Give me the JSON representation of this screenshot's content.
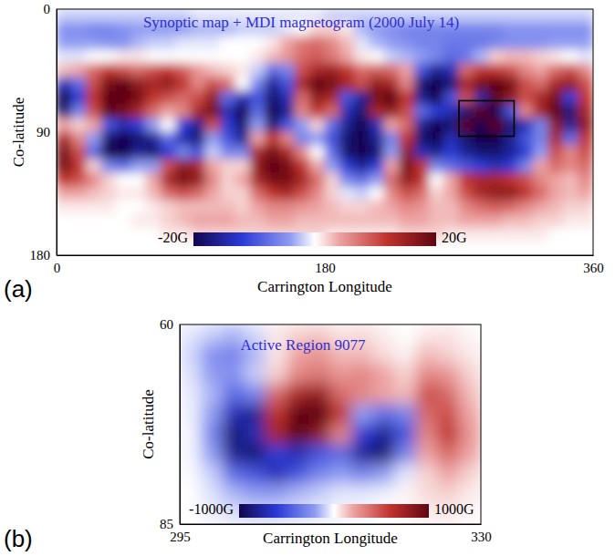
{
  "chart_data": [
    {
      "type": "heatmap",
      "title": "Synoptic map + MDI magnetogram (2000 July 14)",
      "x_label": "Carrington Longitude",
      "y_label": "Co-latitude",
      "panel_label": "(a)",
      "xlim": [
        0,
        360
      ],
      "xticks": [
        0,
        180,
        360
      ],
      "ylim": [
        0,
        180
      ],
      "yticks": [
        0,
        90,
        180
      ],
      "x": [
        5,
        15,
        25,
        35,
        45,
        55,
        65,
        75,
        85,
        95,
        105,
        115,
        125,
        135,
        145,
        155,
        165,
        175,
        185,
        195,
        205,
        215,
        225,
        235,
        245,
        255,
        265,
        275,
        285,
        295,
        305,
        315,
        325,
        335,
        345,
        355
      ],
      "y": [
        5,
        15,
        25,
        35,
        45,
        55,
        65,
        75,
        85,
        95,
        105,
        115,
        125,
        135,
        145,
        155,
        165,
        175
      ],
      "values": [
        [
          -2,
          -2,
          -2,
          -2,
          -2,
          -2,
          -2,
          -2,
          -2,
          -1,
          -1,
          -1,
          -1,
          -1,
          -1,
          -1,
          -1,
          -1,
          -2,
          -2,
          -2,
          -2,
          -2,
          -2,
          -2,
          -2,
          -2,
          -2,
          -2,
          -2,
          -2,
          -2,
          -2,
          -2,
          -2,
          -2
        ],
        [
          -5,
          -5,
          -6,
          -6,
          -5,
          -4,
          -4,
          -4,
          -4,
          -3,
          -3,
          -3,
          -2,
          -2,
          -2,
          -1,
          0,
          2,
          2,
          1,
          -3,
          -4,
          -5,
          -6,
          -6,
          -6,
          -6,
          -6,
          -6,
          -6,
          -5,
          -5,
          -5,
          -5,
          -5,
          -5
        ],
        [
          -4,
          -4,
          -4,
          -5,
          -5,
          -3,
          -2,
          -2,
          -1,
          -1,
          -1,
          0,
          0,
          0,
          1,
          4,
          7,
          8,
          6,
          3,
          -1,
          -3,
          -4,
          -5,
          -6,
          -6,
          -7,
          -7,
          -7,
          -6,
          -5,
          -5,
          -5,
          -4,
          -4,
          -4
        ],
        [
          -1,
          -1,
          0,
          0,
          1,
          1,
          0,
          0,
          0,
          0,
          0,
          0,
          0,
          1,
          3,
          5,
          8,
          9,
          7,
          4,
          1,
          0,
          -2,
          -3,
          -4,
          -6,
          -8,
          -7,
          -3,
          2,
          3,
          3,
          2,
          1,
          0,
          -1
        ],
        [
          3,
          4,
          8,
          12,
          10,
          8,
          10,
          12,
          9,
          5,
          3,
          2,
          1,
          -2,
          -8,
          -6,
          10,
          14,
          15,
          12,
          8,
          9,
          8,
          4,
          -10,
          -16,
          -14,
          8,
          12,
          12,
          10,
          6,
          4,
          8,
          10,
          6
        ],
        [
          -14,
          -8,
          10,
          18,
          20,
          16,
          14,
          16,
          12,
          6,
          10,
          8,
          0,
          -6,
          -16,
          -10,
          14,
          20,
          18,
          14,
          10,
          16,
          14,
          6,
          -18,
          -22,
          -18,
          14,
          18,
          20,
          18,
          10,
          8,
          14,
          16,
          10
        ],
        [
          -20,
          -12,
          12,
          22,
          22,
          18,
          12,
          10,
          8,
          10,
          16,
          -8,
          -14,
          -10,
          -18,
          -14,
          8,
          16,
          14,
          -10,
          -16,
          18,
          20,
          12,
          -16,
          -20,
          -10,
          10,
          -15,
          20,
          16,
          10,
          14,
          18,
          -12,
          12
        ],
        [
          -18,
          -6,
          10,
          20,
          18,
          14,
          8,
          4,
          6,
          14,
          18,
          -14,
          -20,
          -8,
          -20,
          -16,
          6,
          12,
          8,
          -14,
          -18,
          14,
          16,
          10,
          -8,
          -12,
          -14,
          -18,
          20,
          -20,
          -10,
          6,
          14,
          20,
          -18,
          14
        ],
        [
          4,
          2,
          4,
          -10,
          -14,
          -12,
          -4,
          0,
          -12,
          -16,
          10,
          -12,
          -18,
          -4,
          -18,
          -10,
          -4,
          2,
          -8,
          -16,
          -20,
          -14,
          4,
          8,
          -16,
          -20,
          -18,
          20,
          -22,
          22,
          -18,
          -14,
          -6,
          16,
          -16,
          16
        ],
        [
          14,
          6,
          -4,
          -18,
          -22,
          -18,
          -16,
          -8,
          -14,
          -18,
          -4,
          -10,
          -16,
          4,
          12,
          6,
          -6,
          -4,
          -10,
          -18,
          -20,
          -16,
          -6,
          12,
          -18,
          -20,
          -14,
          -18,
          -20,
          -20,
          -16,
          -10,
          -6,
          14,
          -8,
          12
        ],
        [
          18,
          10,
          -8,
          -20,
          -20,
          -16,
          -18,
          -12,
          -6,
          -10,
          -2,
          -6,
          -6,
          14,
          18,
          14,
          6,
          0,
          -8,
          -18,
          -20,
          -18,
          -4,
          16,
          -14,
          -16,
          -12,
          -16,
          -18,
          -18,
          -16,
          -12,
          -4,
          10,
          6,
          10
        ],
        [
          18,
          12,
          2,
          -6,
          -8,
          -4,
          -4,
          10,
          16,
          14,
          4,
          2,
          2,
          16,
          20,
          18,
          12,
          4,
          -4,
          -12,
          -16,
          -12,
          4,
          18,
          12,
          -6,
          -8,
          -10,
          -12,
          -14,
          -12,
          -6,
          4,
          8,
          6,
          8
        ],
        [
          12,
          10,
          6,
          2,
          0,
          0,
          4,
          14,
          18,
          16,
          6,
          2,
          4,
          14,
          18,
          18,
          14,
          8,
          2,
          -6,
          -8,
          -4,
          8,
          16,
          12,
          0,
          4,
          12,
          14,
          14,
          12,
          10,
          6,
          4,
          3,
          6
        ],
        [
          4,
          4,
          3,
          2,
          1,
          1,
          3,
          8,
          10,
          8,
          4,
          2,
          2,
          8,
          12,
          14,
          10,
          6,
          2,
          -1,
          -2,
          0,
          6,
          10,
          8,
          2,
          4,
          10,
          14,
          16,
          16,
          12,
          8,
          4,
          3,
          4
        ],
        [
          1,
          1,
          1,
          1,
          0,
          0,
          1,
          2,
          3,
          3,
          3,
          3,
          2,
          4,
          6,
          6,
          5,
          4,
          3,
          2,
          2,
          3,
          4,
          6,
          5,
          3,
          3,
          6,
          8,
          9,
          8,
          6,
          4,
          3,
          2,
          2
        ],
        [
          0,
          0,
          0,
          0,
          0,
          1,
          1,
          2,
          3,
          4,
          4,
          4,
          3,
          3,
          4,
          4,
          3,
          3,
          3,
          3,
          3,
          3,
          3,
          4,
          4,
          3,
          3,
          4,
          4,
          4,
          3,
          3,
          2,
          2,
          1,
          1
        ],
        [
          0,
          0,
          0,
          0,
          0,
          0,
          0,
          1,
          1,
          2,
          2,
          2,
          2,
          2,
          2,
          2,
          2,
          2,
          1,
          1,
          1,
          1,
          1,
          2,
          2,
          2,
          1,
          1,
          1,
          1,
          1,
          1,
          1,
          0,
          0,
          0
        ],
        [
          0,
          0,
          0,
          0,
          0,
          0,
          0,
          0,
          0,
          0,
          0,
          0,
          0,
          0,
          0,
          0,
          0,
          0,
          0,
          0,
          0,
          0,
          0,
          0,
          0,
          0,
          0,
          0,
          0,
          0,
          0,
          0,
          0,
          0,
          0,
          0
        ]
      ],
      "colorbar": {
        "range": [
          -20,
          20
        ],
        "ticks": [
          {
            "value": -20,
            "label": "-20G"
          },
          {
            "value": 20,
            "label": "20G"
          }
        ]
      },
      "region_box": {
        "x": [
          270,
          307
        ],
        "y": [
          67,
          93
        ]
      }
    },
    {
      "type": "heatmap",
      "title": "Active Region 9077",
      "x_label": "Carrington Longitude",
      "y_label": "Co-latitude",
      "panel_label": "(b)",
      "xlim": [
        295,
        330
      ],
      "xticks": [
        295,
        330
      ],
      "ylim": [
        60,
        85
      ],
      "yticks": [
        60,
        85
      ],
      "x": [
        296.25,
        298.75,
        301.25,
        303.75,
        306.25,
        308.75,
        311.25,
        313.75,
        316.25,
        318.75,
        321.25,
        323.75,
        326.25,
        328.75
      ],
      "y": [
        61.25,
        63.75,
        66.25,
        68.75,
        71.25,
        73.75,
        76.25,
        78.75,
        81.25,
        83.75
      ],
      "values": [
        [
          -50,
          -100,
          -150,
          -80,
          50,
          100,
          120,
          60,
          80,
          40,
          0,
          50,
          60,
          20
        ],
        [
          -80,
          -250,
          -300,
          -150,
          50,
          200,
          250,
          150,
          150,
          80,
          30,
          150,
          100,
          50
        ],
        [
          -60,
          -200,
          -250,
          -100,
          100,
          300,
          350,
          250,
          300,
          200,
          100,
          300,
          250,
          100
        ],
        [
          -40,
          -150,
          -400,
          -300,
          400,
          700,
          800,
          400,
          300,
          200,
          150,
          500,
          400,
          150
        ],
        [
          -30,
          -200,
          -700,
          -800,
          600,
          1000,
          1100,
          600,
          -200,
          -400,
          -300,
          400,
          500,
          200
        ],
        [
          -20,
          -300,
          -900,
          -700,
          700,
          1000,
          800,
          300,
          -600,
          -800,
          -500,
          300,
          600,
          250
        ],
        [
          -20,
          -200,
          -800,
          -900,
          -600,
          -700,
          -500,
          -400,
          -800,
          -900,
          -300,
          200,
          400,
          200
        ],
        [
          -10,
          -100,
          -400,
          -500,
          -700,
          -500,
          -300,
          -200,
          -300,
          -200,
          -50,
          100,
          200,
          100
        ],
        [
          0,
          -60,
          -150,
          -200,
          -200,
          -150,
          -100,
          -50,
          -50,
          -30,
          20,
          80,
          100,
          50
        ],
        [
          0,
          -30,
          -60,
          -80,
          -80,
          -60,
          -40,
          -20,
          -20,
          0,
          20,
          40,
          50,
          20
        ]
      ],
      "colorbar": {
        "range": [
          -1000,
          1000
        ],
        "ticks": [
          {
            "value": -1000,
            "label": "-1000G"
          },
          {
            "value": 1000,
            "label": "1000G"
          }
        ]
      }
    }
  ]
}
